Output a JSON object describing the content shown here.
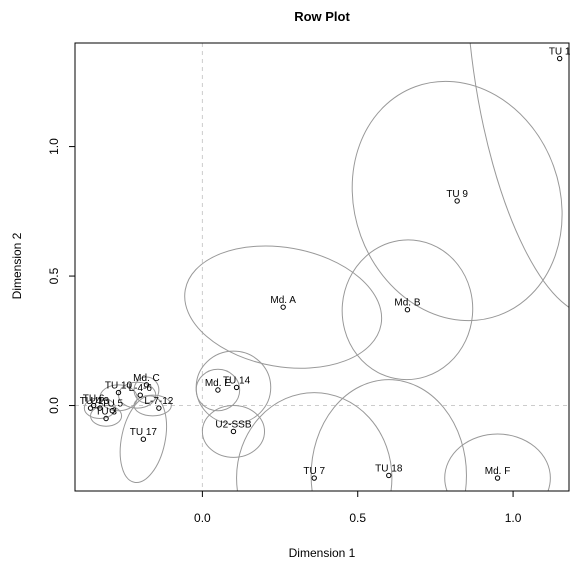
{
  "chart_data": {
    "type": "scatter",
    "title": "Row Plot",
    "xlabel": "Dimension 1",
    "ylabel": "Dimension 2",
    "xlim": [
      -0.41,
      1.18
    ],
    "ylim": [
      -0.33,
      1.4
    ],
    "xticks": [
      "0.0",
      "0.5",
      "1.0"
    ],
    "xtick_values": [
      0,
      0.5,
      1.0
    ],
    "yticks": [
      "0.0",
      "0.5",
      "1.0"
    ],
    "ytick_values": [
      0,
      0.5,
      1.0
    ],
    "reference_lines": {
      "x": 0,
      "y": 0,
      "style": "dashed"
    },
    "colors": {
      "ellipse": "#999999",
      "reference": "#cccccc",
      "frame": "#000000"
    },
    "points": [
      {
        "label": "TU 1",
        "x": 1.15,
        "y": 1.34
      },
      {
        "label": "TU 9",
        "x": 0.82,
        "y": 0.79
      },
      {
        "label": "Md. A",
        "x": 0.26,
        "y": 0.38
      },
      {
        "label": "Md. B",
        "x": 0.66,
        "y": 0.37
      },
      {
        "label": "Md. C",
        "x": -0.18,
        "y": 0.08
      },
      {
        "label": "Md. E",
        "x": 0.05,
        "y": 0.06
      },
      {
        "label": "TU 14",
        "x": 0.11,
        "y": 0.07
      },
      {
        "label": "TU 10",
        "x": -0.27,
        "y": 0.05
      },
      {
        "label": "L-4-6",
        "x": -0.2,
        "y": 0.04
      },
      {
        "label": "L-7-12",
        "x": -0.14,
        "y": -0.01
      },
      {
        "label": "TU 6",
        "x": -0.35,
        "y": 0.0
      },
      {
        "label": "TU 4",
        "x": -0.36,
        "y": -0.01
      },
      {
        "label": "U13",
        "x": -0.33,
        "y": -0.01
      },
      {
        "label": "TU 5",
        "x": -0.29,
        "y": -0.02
      },
      {
        "label": "TU 3",
        "x": -0.31,
        "y": -0.05
      },
      {
        "label": "TU 17",
        "x": -0.19,
        "y": -0.13
      },
      {
        "label": "U2-SSB",
        "x": 0.1,
        "y": -0.1
      },
      {
        "label": "TU 7",
        "x": 0.36,
        "y": -0.28
      },
      {
        "label": "TU 18",
        "x": 0.6,
        "y": -0.27
      },
      {
        "label": "Md. F",
        "x": 0.95,
        "y": -0.28
      }
    ],
    "ellipses": [
      {
        "cx": 1.15,
        "cy": 1.34,
        "rx": 0.28,
        "ry": 1.0,
        "rot": -8
      },
      {
        "cx": 0.82,
        "cy": 0.79,
        "rx": 0.33,
        "ry": 0.47,
        "rot": -20
      },
      {
        "cx": 0.26,
        "cy": 0.38,
        "rx": 0.32,
        "ry": 0.23,
        "rot": 10
      },
      {
        "cx": 0.66,
        "cy": 0.37,
        "rx": 0.21,
        "ry": 0.27,
        "rot": 5
      },
      {
        "cx": 0.1,
        "cy": 0.07,
        "rx": 0.12,
        "ry": 0.14,
        "rot": 0
      },
      {
        "cx": 0.05,
        "cy": 0.06,
        "rx": 0.07,
        "ry": 0.08,
        "rot": 0
      },
      {
        "cx": 0.1,
        "cy": -0.1,
        "rx": 0.1,
        "ry": 0.1,
        "rot": 0
      },
      {
        "cx": 0.36,
        "cy": -0.28,
        "rx": 0.25,
        "ry": 0.33,
        "rot": 0
      },
      {
        "cx": 0.6,
        "cy": -0.27,
        "rx": 0.25,
        "ry": 0.37,
        "rot": 0
      },
      {
        "cx": 0.95,
        "cy": -0.28,
        "rx": 0.17,
        "ry": 0.17,
        "rot": 0
      },
      {
        "cx": -0.19,
        "cy": -0.13,
        "rx": 0.07,
        "ry": 0.17,
        "rot": 12
      },
      {
        "cx": -0.18,
        "cy": 0.06,
        "rx": 0.04,
        "ry": 0.05,
        "rot": 0
      },
      {
        "cx": -0.21,
        "cy": 0.04,
        "rx": 0.06,
        "ry": 0.05,
        "rot": 0
      },
      {
        "cx": -0.16,
        "cy": 0.0,
        "rx": 0.06,
        "ry": 0.04,
        "rot": 0
      },
      {
        "cx": -0.27,
        "cy": 0.03,
        "rx": 0.06,
        "ry": 0.05,
        "rot": 0
      },
      {
        "cx": -0.33,
        "cy": -0.01,
        "rx": 0.05,
        "ry": 0.04,
        "rot": 0
      },
      {
        "cx": -0.31,
        "cy": -0.04,
        "rx": 0.05,
        "ry": 0.04,
        "rot": 0
      }
    ]
  }
}
